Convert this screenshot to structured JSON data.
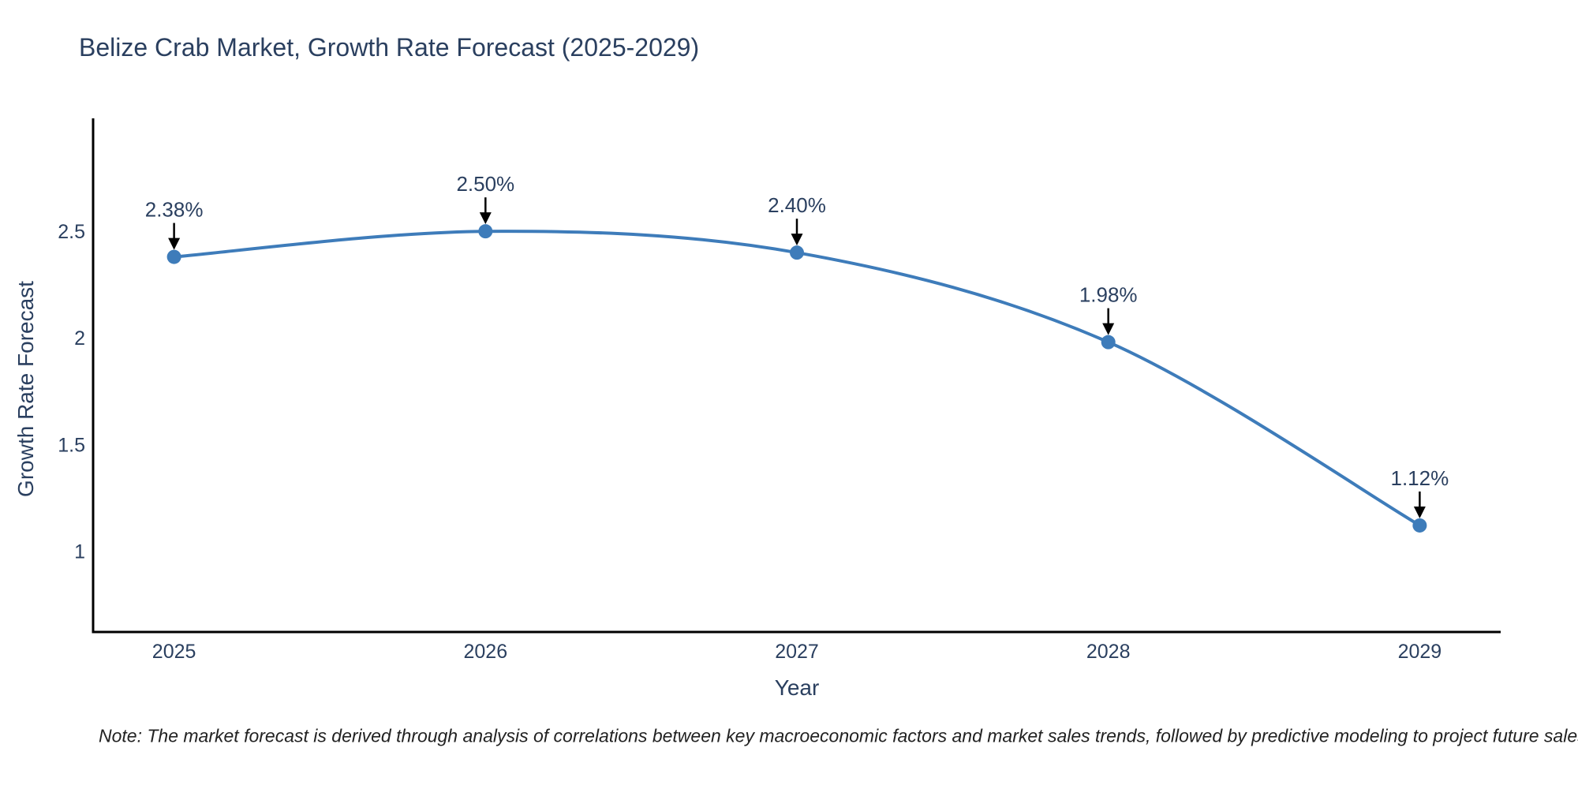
{
  "chart_data": {
    "type": "line",
    "title": "Belize Crab Market, Growth Rate Forecast (2025-2029)",
    "xlabel": "Year",
    "ylabel": "Growth Rate Forecast",
    "x": [
      2025,
      2026,
      2027,
      2028,
      2029
    ],
    "values": [
      2.38,
      2.5,
      2.4,
      1.98,
      1.12
    ],
    "point_labels": [
      "2.38%",
      "2.50%",
      "2.40%",
      "1.98%",
      "1.12%"
    ],
    "yticks": [
      {
        "value": 2.5,
        "label": "2.5"
      },
      {
        "value": 2.0,
        "label": "2"
      },
      {
        "value": 1.5,
        "label": "1.5"
      },
      {
        "value": 1.0,
        "label": "1"
      }
    ],
    "xtick_labels": [
      "2025",
      "2026",
      "2027",
      "2028",
      "2029"
    ],
    "xlim": [
      2024.74,
      2029.26
    ],
    "ylim": [
      0.62,
      3.03
    ],
    "line_shape": "spline",
    "grid": false,
    "legend": "none",
    "colors": {
      "line": "#3E7CBA",
      "marker": "#3E7CBA",
      "axis": "#000000",
      "text": "#2a3f5f",
      "annotation_arrow": "#000000",
      "note_text": "#222222"
    },
    "note": "Note: The market forecast is derived through analysis of correlations between key macroeconomic factors and market sales trends, followed by predictive modeling to project future sales."
  }
}
